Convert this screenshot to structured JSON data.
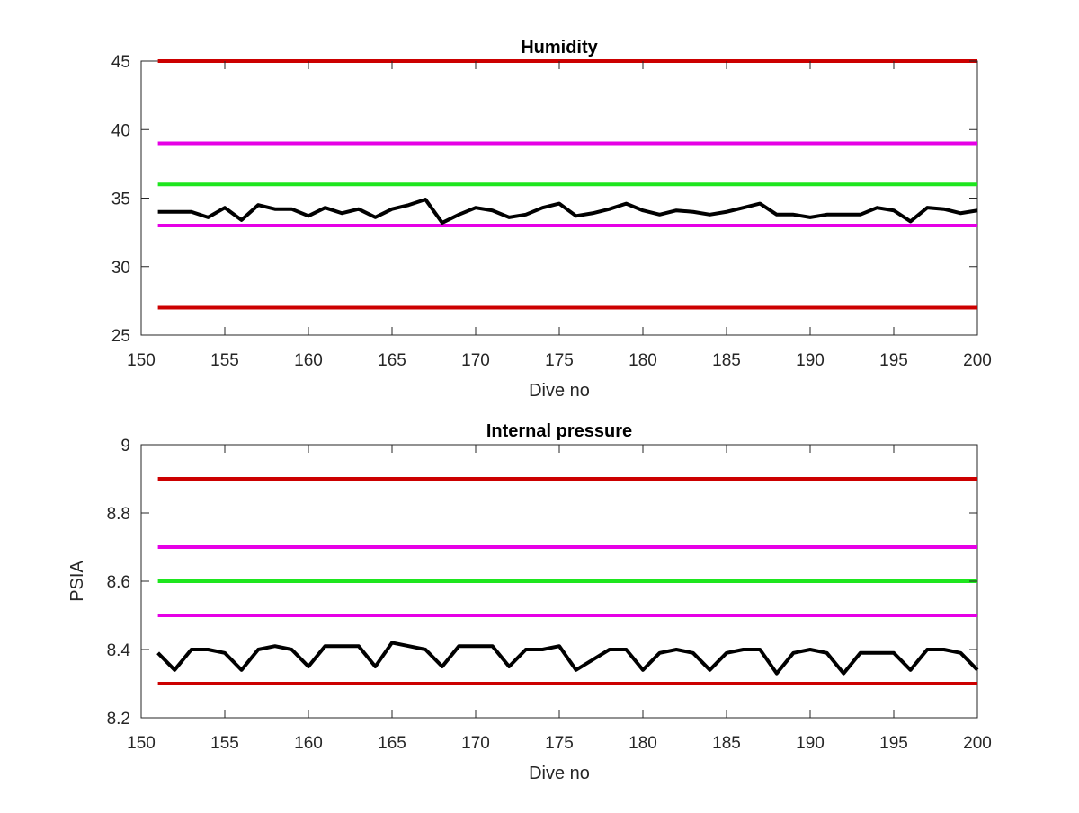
{
  "chart_data": [
    {
      "type": "line",
      "title": "Humidity",
      "xlabel": "Dive no",
      "ylabel": "",
      "xlim": [
        150,
        200
      ],
      "ylim": [
        25,
        45
      ],
      "xticks": [
        150,
        155,
        160,
        165,
        170,
        175,
        180,
        185,
        190,
        195,
        200
      ],
      "yticks": [
        25,
        30,
        35,
        40,
        45
      ],
      "grid": false,
      "thresholds": [
        {
          "y": 45,
          "color": "#cc0000",
          "x": [
            151,
            200
          ]
        },
        {
          "y": 39,
          "color": "#e600e6",
          "x": [
            151,
            200
          ]
        },
        {
          "y": 36,
          "color": "#1ee61e",
          "x": [
            151,
            200
          ]
        },
        {
          "y": 33,
          "color": "#e600e6",
          "x": [
            151,
            200
          ]
        },
        {
          "y": 27,
          "color": "#cc0000",
          "x": [
            151,
            200
          ]
        }
      ],
      "series": [
        {
          "color": "#000000",
          "x": [
            151,
            152,
            153,
            154,
            155,
            156,
            157,
            158,
            159,
            160,
            161,
            162,
            163,
            164,
            165,
            166,
            167,
            168,
            169,
            170,
            171,
            172,
            173,
            174,
            175,
            176,
            177,
            178,
            179,
            180,
            181,
            182,
            183,
            184,
            185,
            186,
            187,
            188,
            189,
            190,
            191,
            192,
            193,
            194,
            195,
            196,
            197,
            198,
            199,
            200
          ],
          "values": [
            34.0,
            34.0,
            34.0,
            33.6,
            34.3,
            33.4,
            34.5,
            34.2,
            34.2,
            33.7,
            34.3,
            33.9,
            34.2,
            33.6,
            34.2,
            34.5,
            34.9,
            33.2,
            33.8,
            34.3,
            34.1,
            33.6,
            33.8,
            34.3,
            34.6,
            33.7,
            33.9,
            34.2,
            34.6,
            34.1,
            33.8,
            34.1,
            34.0,
            33.8,
            34.0,
            34.3,
            34.6,
            33.8,
            33.8,
            33.6,
            33.8,
            33.8,
            33.8,
            34.3,
            34.1,
            33.3,
            34.3,
            34.2,
            33.9,
            34.1
          ]
        }
      ]
    },
    {
      "type": "line",
      "title": "Internal pressure",
      "xlabel": "Dive no",
      "ylabel": "PSIA",
      "xlim": [
        150,
        200
      ],
      "ylim": [
        8.2,
        9
      ],
      "xticks": [
        150,
        155,
        160,
        165,
        170,
        175,
        180,
        185,
        190,
        195,
        200
      ],
      "yticks": [
        8.2,
        8.4,
        8.6,
        8.8,
        9
      ],
      "grid": false,
      "thresholds": [
        {
          "y": 8.9,
          "color": "#cc0000",
          "x": [
            151,
            200
          ]
        },
        {
          "y": 8.7,
          "color": "#e600e6",
          "x": [
            151,
            200
          ]
        },
        {
          "y": 8.6,
          "color": "#1ee61e",
          "x": [
            151,
            200
          ]
        },
        {
          "y": 8.5,
          "color": "#e600e6",
          "x": [
            151,
            200
          ]
        },
        {
          "y": 8.3,
          "color": "#cc0000",
          "x": [
            151,
            200
          ]
        }
      ],
      "series": [
        {
          "color": "#000000",
          "x": [
            151,
            152,
            153,
            154,
            155,
            156,
            157,
            158,
            159,
            160,
            161,
            162,
            163,
            164,
            165,
            166,
            167,
            168,
            169,
            170,
            171,
            172,
            173,
            174,
            175,
            176,
            177,
            178,
            179,
            180,
            181,
            182,
            183,
            184,
            185,
            186,
            187,
            188,
            189,
            190,
            191,
            192,
            193,
            194,
            195,
            196,
            197,
            198,
            199,
            200
          ],
          "values": [
            8.39,
            8.34,
            8.4,
            8.4,
            8.39,
            8.34,
            8.4,
            8.41,
            8.4,
            8.35,
            8.41,
            8.41,
            8.41,
            8.35,
            8.42,
            8.41,
            8.4,
            8.35,
            8.41,
            8.41,
            8.41,
            8.35,
            8.4,
            8.4,
            8.41,
            8.34,
            8.37,
            8.4,
            8.4,
            8.34,
            8.39,
            8.4,
            8.39,
            8.34,
            8.39,
            8.4,
            8.4,
            8.33,
            8.39,
            8.4,
            8.39,
            8.33,
            8.39,
            8.39,
            8.39,
            8.34,
            8.4,
            8.4,
            8.39,
            8.34
          ]
        }
      ]
    }
  ]
}
